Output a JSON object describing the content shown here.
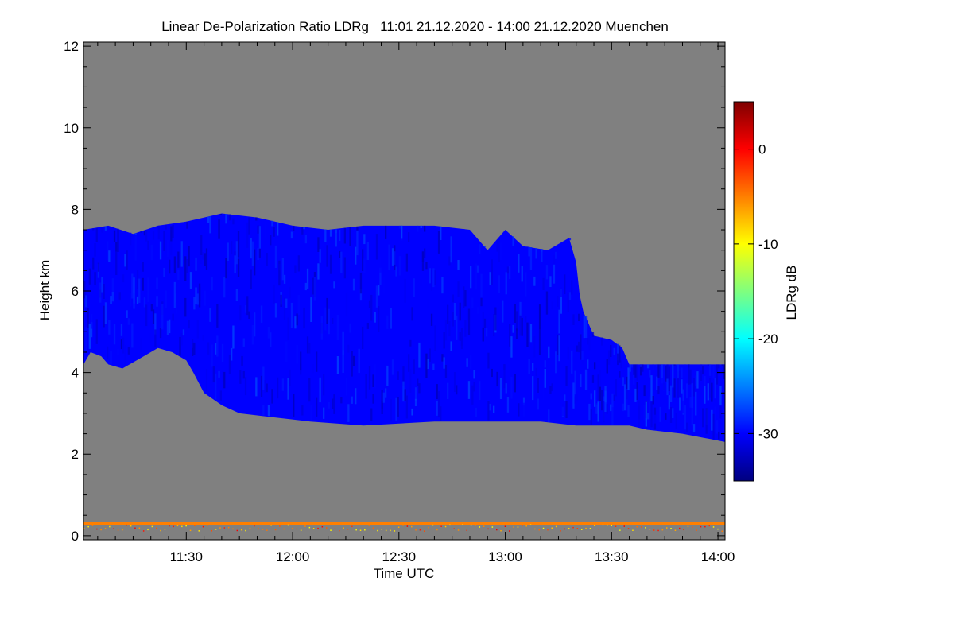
{
  "chart_data": {
    "type": "heatmap",
    "title": "Linear De-Polarization Ratio LDRg   11:01 21.12.2020 - 14:00 21.12.2020 Muenchen",
    "xlabel": "Time UTC",
    "ylabel": "Height km",
    "xlim_minutes_utc": [
      661,
      842
    ],
    "ylim": [
      -0.1,
      12.1
    ],
    "x_ticks": [
      {
        "label": "11:30",
        "minutes": 690
      },
      {
        "label": "12:00",
        "minutes": 720
      },
      {
        "label": "12:30",
        "minutes": 750
      },
      {
        "label": "13:00",
        "minutes": 780
      },
      {
        "label": "13:30",
        "minutes": 810
      },
      {
        "label": "14:00",
        "minutes": 840
      }
    ],
    "y_ticks": [
      0,
      2,
      4,
      6,
      8,
      10,
      12
    ],
    "background_color": "#808080",
    "colorbar": {
      "label": "LDRg dB",
      "range": [
        -35,
        5
      ],
      "ticks": [
        "0",
        "-10",
        "-20",
        "-30"
      ],
      "tick_values": [
        0,
        -10,
        -20,
        -30
      ],
      "colors": [
        "#00007f",
        "#0000ff",
        "#007fff",
        "#00ffff",
        "#7fff7f",
        "#ffff00",
        "#ff7f00",
        "#ff0000",
        "#7f0000"
      ]
    },
    "cloud_layer": {
      "typical_ldr_db": -30,
      "top_km": [
        [
          661,
          7.5
        ],
        [
          668,
          7.6
        ],
        [
          675,
          7.4
        ],
        [
          682,
          7.6
        ],
        [
          690,
          7.7
        ],
        [
          700,
          7.9
        ],
        [
          710,
          7.8
        ],
        [
          720,
          7.6
        ],
        [
          730,
          7.5
        ],
        [
          740,
          7.6
        ],
        [
          750,
          7.6
        ],
        [
          760,
          7.6
        ],
        [
          770,
          7.5
        ],
        [
          775,
          7.0
        ],
        [
          780,
          7.5
        ],
        [
          785,
          7.1
        ],
        [
          792,
          7.0
        ],
        [
          798,
          7.3
        ],
        [
          800,
          6.7
        ],
        [
          801,
          5.9
        ],
        [
          802,
          5.5
        ],
        [
          805,
          4.9
        ],
        [
          810,
          4.8
        ],
        [
          813,
          4.6
        ],
        [
          815,
          4.2
        ],
        [
          830,
          4.2
        ],
        [
          842,
          4.2
        ]
      ],
      "base_km": [
        [
          661,
          4.2
        ],
        [
          663,
          4.5
        ],
        [
          666,
          4.4
        ],
        [
          668,
          4.2
        ],
        [
          672,
          4.1
        ],
        [
          678,
          4.4
        ],
        [
          682,
          4.6
        ],
        [
          686,
          4.5
        ],
        [
          690,
          4.3
        ],
        [
          692,
          4.0
        ],
        [
          695,
          3.5
        ],
        [
          700,
          3.2
        ],
        [
          705,
          3.0
        ],
        [
          715,
          2.9
        ],
        [
          725,
          2.8
        ],
        [
          740,
          2.7
        ],
        [
          760,
          2.8
        ],
        [
          780,
          2.8
        ],
        [
          790,
          2.8
        ],
        [
          800,
          2.7
        ],
        [
          810,
          2.7
        ],
        [
          815,
          2.7
        ],
        [
          820,
          2.6
        ],
        [
          830,
          2.5
        ],
        [
          836,
          2.4
        ],
        [
          842,
          2.3
        ]
      ]
    },
    "near_ground_layer": {
      "height_km": 0.3,
      "typical_ldr_db": -5
    }
  }
}
